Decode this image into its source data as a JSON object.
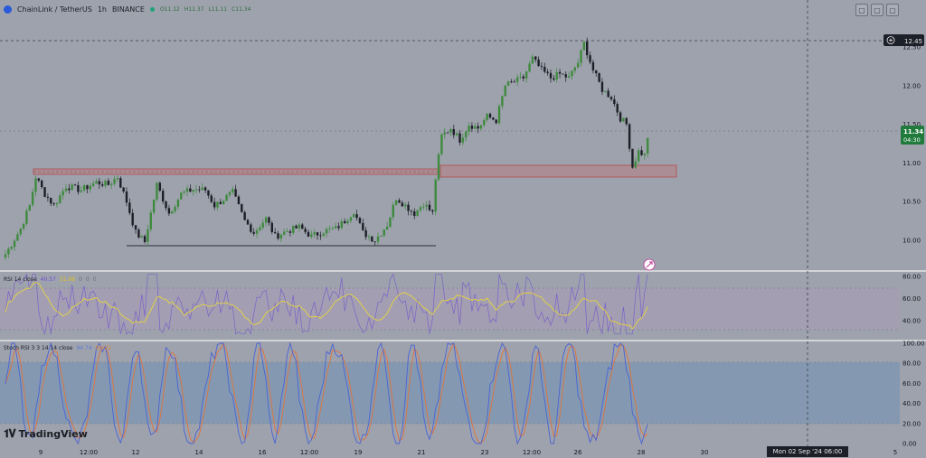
{
  "header": {
    "symbol": "ChainLink / TetherUS",
    "interval": "1h",
    "exchange": "BINANCE",
    "ohlc": [
      "O11.12",
      "H11.37",
      "L11.11",
      "C11.34"
    ]
  },
  "window_buttons": [
    "▢",
    "▢",
    "▢"
  ],
  "chart_data": {
    "type": "candlestick",
    "price_axis": {
      "ticks": [
        "12.50",
        "12.00",
        "11.50",
        "11.00",
        "10.50",
        "10.00"
      ],
      "crosshair_label": "12.45",
      "last_price": "11.34",
      "countdown": "04:30"
    },
    "time_axis": {
      "ticks": [
        "9",
        "12:00",
        "12",
        "14",
        "16",
        "12:00",
        "19",
        "21",
        "23",
        "12:00",
        "26",
        "28",
        "30",
        "Mon 02 Sep '24  06:00",
        "5"
      ],
      "crosshair_label": "Mon 02 Sep '24  06:00"
    },
    "price_anchors": [
      [
        0,
        9.82
      ],
      [
        2,
        9.95
      ],
      [
        5,
        10.15
      ],
      [
        8,
        10.45
      ],
      [
        10,
        10.82
      ],
      [
        13,
        10.6
      ],
      [
        16,
        10.45
      ],
      [
        20,
        10.7
      ],
      [
        25,
        10.65
      ],
      [
        30,
        10.75
      ],
      [
        34,
        10.72
      ],
      [
        37,
        10.82
      ],
      [
        40,
        10.5
      ],
      [
        43,
        10.1
      ],
      [
        46,
        9.98
      ],
      [
        50,
        10.72
      ],
      [
        54,
        10.35
      ],
      [
        58,
        10.6
      ],
      [
        62,
        10.66
      ],
      [
        66,
        10.65
      ],
      [
        69,
        10.45
      ],
      [
        71,
        10.5
      ],
      [
        75,
        10.62
      ],
      [
        79,
        10.25
      ],
      [
        82,
        10.1
      ],
      [
        86,
        10.28
      ],
      [
        89,
        10.05
      ],
      [
        93,
        10.12
      ],
      [
        97,
        10.17
      ],
      [
        101,
        10.05
      ],
      [
        105,
        10.12
      ],
      [
        109,
        10.15
      ],
      [
        112,
        10.25
      ],
      [
        115,
        10.38
      ],
      [
        118,
        10.1
      ],
      [
        122,
        10.0
      ],
      [
        126,
        10.2
      ],
      [
        129,
        10.55
      ],
      [
        132,
        10.45
      ],
      [
        135,
        10.35
      ],
      [
        138,
        10.48
      ],
      [
        141,
        10.35
      ],
      [
        142,
        10.8
      ],
      [
        144,
        11.35
      ],
      [
        147,
        11.45
      ],
      [
        150,
        11.3
      ],
      [
        153,
        11.5
      ],
      [
        156,
        11.45
      ],
      [
        159,
        11.6
      ],
      [
        162,
        11.55
      ],
      [
        165,
        12.0
      ],
      [
        168,
        12.05
      ],
      [
        171,
        12.1
      ],
      [
        174,
        12.35
      ],
      [
        177,
        12.2
      ],
      [
        180,
        12.1
      ],
      [
        183,
        12.15
      ],
      [
        186,
        12.1
      ],
      [
        189,
        12.3
      ],
      [
        191,
        12.55
      ],
      [
        194,
        12.2
      ],
      [
        197,
        11.95
      ],
      [
        200,
        11.85
      ],
      [
        203,
        11.58
      ],
      [
        205,
        11.5
      ],
      [
        207,
        10.95
      ],
      [
        209,
        11.15
      ],
      [
        211,
        11.1
      ],
      [
        212,
        11.34
      ]
    ],
    "rsi": {
      "label": "RSI 14 close",
      "values": [
        "40.57",
        "31.06",
        "0",
        "0",
        "0"
      ],
      "ticks": [
        "80.00",
        "60.00",
        "40.00"
      ]
    },
    "stoch": {
      "label": "Stoch RSI 3 3 14 14 close",
      "values": [
        "94.74",
        "96.25"
      ],
      "ticks": [
        "100.00",
        "80.00",
        "60.00",
        "40.00",
        "20.00",
        "0.00"
      ]
    }
  },
  "branding": "TradingView",
  "colors": {
    "background": "#9ea2ad",
    "candle_up": "#3e8a3e",
    "candle_down": "#1d1f26",
    "zone": "#c26a6a",
    "rsi_line": "#e0d04a",
    "rsi_band": "#a79ab6",
    "stoch_k": "#4a63d4",
    "stoch_d": "#e0733a",
    "stoch_band": "#7d97b2",
    "axis_text": "#16181e",
    "last_price_bg": "#1f7a3c"
  }
}
